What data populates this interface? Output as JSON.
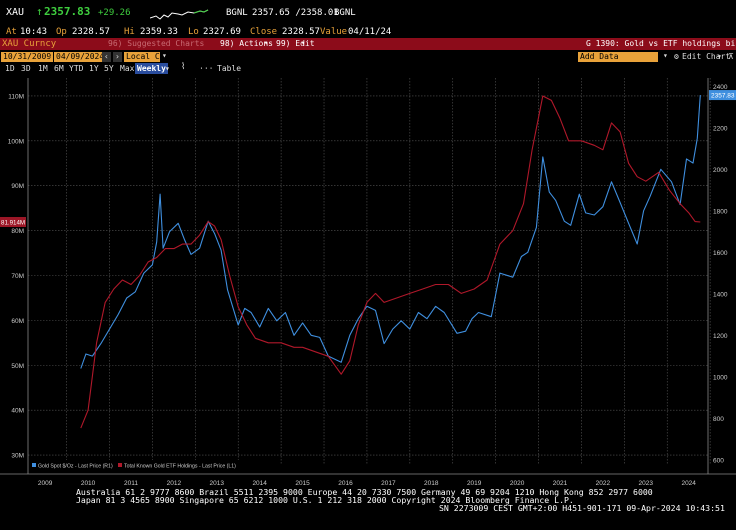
{
  "quote": {
    "ticker": "XAU",
    "arrow": "↑",
    "last": "2357.83",
    "change": "+29.26",
    "source": "BGNL",
    "bid_ask": "2357.65 /2358.01",
    "source2": "BGNL",
    "at_label": "At",
    "time": "10:43",
    "op_label": "Op",
    "open": "2328.57",
    "hi_label": "Hi",
    "high": "2359.33",
    "lo_label": "Lo",
    "low": "2327.69",
    "close_label": "Close",
    "close": "2328.57",
    "value_label": "Value",
    "value_date": "04/11/24"
  },
  "titlebar": {
    "security": "XAU Curncy",
    "suggested": "96) Suggested Charts",
    "actions": "98) Actions",
    "edit": "99) Edit",
    "chart_code": "G 1390: Gold vs ETF holdings bi"
  },
  "controls": {
    "start_date": "10/31/2009",
    "end_date": "04/09/2024",
    "currency": "Local CCY",
    "add_data_placeholder": "Add Data",
    "edit_chart": "Edit Chart"
  },
  "ranges": [
    "1D",
    "3D",
    "1M",
    "6M",
    "YTD",
    "1Y",
    "5Y",
    "Max"
  ],
  "frequency": "Weekly",
  "table_label": "Table",
  "chart_data": {
    "type": "line",
    "x_tick_labels": [
      "2009",
      "2010",
      "2011",
      "2012",
      "2013",
      "2014",
      "2015",
      "2016",
      "2017",
      "2018",
      "2019",
      "2020",
      "2021",
      "2022",
      "2023",
      "2024"
    ],
    "left_axis_ticks": [
      "30M",
      "40M",
      "50M",
      "60M",
      "70M",
      "80M",
      "90M",
      "100M",
      "110M"
    ],
    "left_axis_range_millions": [
      30,
      110
    ],
    "right_axis_ticks": [
      "600",
      "800",
      "1000",
      "1200",
      "1400",
      "1600",
      "1800",
      "2000",
      "2200",
      "2400"
    ],
    "right_axis_range": [
      600,
      2400
    ],
    "last_value_right": "2357.83",
    "last_value_left": "81.914M",
    "grid": true,
    "legend": [
      {
        "label": "Gold Spot $/Oz - Last Price (R1)",
        "color": "#3f8fdf"
      },
      {
        "label": "Total Known Gold ETF Holdings - Last Price (L1)",
        "color": "#b0182a"
      }
    ],
    "series": [
      {
        "name": "Gold Spot $/Oz - Last Price (R1)",
        "axis": "right",
        "color": "#3f8fdf",
        "points": [
          [
            2009.83,
            1040
          ],
          [
            2009.95,
            1110
          ],
          [
            2010.1,
            1100
          ],
          [
            2010.3,
            1160
          ],
          [
            2010.5,
            1230
          ],
          [
            2010.7,
            1300
          ],
          [
            2010.9,
            1380
          ],
          [
            2011.1,
            1410
          ],
          [
            2011.3,
            1500
          ],
          [
            2011.5,
            1540
          ],
          [
            2011.6,
            1650
          ],
          [
            2011.68,
            1880
          ],
          [
            2011.75,
            1620
          ],
          [
            2011.9,
            1700
          ],
          [
            2012.1,
            1740
          ],
          [
            2012.25,
            1660
          ],
          [
            2012.4,
            1590
          ],
          [
            2012.6,
            1620
          ],
          [
            2012.8,
            1750
          ],
          [
            2012.95,
            1690
          ],
          [
            2013.1,
            1610
          ],
          [
            2013.25,
            1420
          ],
          [
            2013.5,
            1250
          ],
          [
            2013.65,
            1330
          ],
          [
            2013.8,
            1310
          ],
          [
            2014.0,
            1240
          ],
          [
            2014.2,
            1330
          ],
          [
            2014.4,
            1270
          ],
          [
            2014.6,
            1310
          ],
          [
            2014.8,
            1200
          ],
          [
            2015.0,
            1260
          ],
          [
            2015.2,
            1200
          ],
          [
            2015.4,
            1190
          ],
          [
            2015.6,
            1100
          ],
          [
            2015.9,
            1070
          ],
          [
            2016.1,
            1200
          ],
          [
            2016.3,
            1280
          ],
          [
            2016.5,
            1340
          ],
          [
            2016.7,
            1320
          ],
          [
            2016.9,
            1160
          ],
          [
            2017.1,
            1230
          ],
          [
            2017.3,
            1270
          ],
          [
            2017.5,
            1230
          ],
          [
            2017.7,
            1310
          ],
          [
            2017.9,
            1280
          ],
          [
            2018.1,
            1340
          ],
          [
            2018.3,
            1310
          ],
          [
            2018.6,
            1210
          ],
          [
            2018.8,
            1220
          ],
          [
            2018.95,
            1280
          ],
          [
            2019.1,
            1310
          ],
          [
            2019.4,
            1290
          ],
          [
            2019.6,
            1500
          ],
          [
            2019.9,
            1480
          ],
          [
            2020.1,
            1580
          ],
          [
            2020.25,
            1600
          ],
          [
            2020.45,
            1720
          ],
          [
            2020.6,
            2060
          ],
          [
            2020.75,
            1890
          ],
          [
            2020.9,
            1850
          ],
          [
            2021.1,
            1750
          ],
          [
            2021.25,
            1730
          ],
          [
            2021.45,
            1880
          ],
          [
            2021.6,
            1790
          ],
          [
            2021.8,
            1780
          ],
          [
            2022.0,
            1820
          ],
          [
            2022.2,
            1940
          ],
          [
            2022.4,
            1840
          ],
          [
            2022.6,
            1740
          ],
          [
            2022.8,
            1640
          ],
          [
            2022.95,
            1800
          ],
          [
            2023.1,
            1870
          ],
          [
            2023.35,
            2000
          ],
          [
            2023.6,
            1940
          ],
          [
            2023.8,
            1830
          ],
          [
            2023.95,
            2050
          ],
          [
            2024.1,
            2030
          ],
          [
            2024.2,
            2150
          ],
          [
            2024.27,
            2357.83
          ]
        ]
      },
      {
        "name": "Total Known Gold ETF Holdings - Last Price (L1)",
        "axis": "left",
        "color": "#b0182a",
        "points": [
          [
            2009.83,
            36
          ],
          [
            2010.0,
            40
          ],
          [
            2010.2,
            55
          ],
          [
            2010.4,
            64
          ],
          [
            2010.6,
            67
          ],
          [
            2010.8,
            69
          ],
          [
            2011.0,
            68
          ],
          [
            2011.2,
            70
          ],
          [
            2011.4,
            73
          ],
          [
            2011.6,
            74
          ],
          [
            2011.8,
            76
          ],
          [
            2012.0,
            76
          ],
          [
            2012.2,
            77
          ],
          [
            2012.4,
            77
          ],
          [
            2012.6,
            79
          ],
          [
            2012.8,
            82
          ],
          [
            2012.95,
            81
          ],
          [
            2013.1,
            78
          ],
          [
            2013.3,
            70
          ],
          [
            2013.5,
            63
          ],
          [
            2013.7,
            59
          ],
          [
            2013.9,
            56
          ],
          [
            2014.2,
            55
          ],
          [
            2014.5,
            55
          ],
          [
            2014.8,
            54
          ],
          [
            2015.0,
            54
          ],
          [
            2015.3,
            53
          ],
          [
            2015.6,
            52
          ],
          [
            2015.9,
            48
          ],
          [
            2016.1,
            51
          ],
          [
            2016.3,
            59
          ],
          [
            2016.5,
            64
          ],
          [
            2016.7,
            66
          ],
          [
            2016.9,
            64
          ],
          [
            2017.2,
            65
          ],
          [
            2017.5,
            66
          ],
          [
            2017.8,
            67
          ],
          [
            2018.1,
            68
          ],
          [
            2018.4,
            68
          ],
          [
            2018.7,
            66
          ],
          [
            2019.0,
            67
          ],
          [
            2019.3,
            69
          ],
          [
            2019.6,
            77
          ],
          [
            2019.9,
            80
          ],
          [
            2020.15,
            86
          ],
          [
            2020.35,
            98
          ],
          [
            2020.6,
            110
          ],
          [
            2020.8,
            109
          ],
          [
            2021.0,
            105
          ],
          [
            2021.2,
            100
          ],
          [
            2021.5,
            100
          ],
          [
            2021.8,
            99
          ],
          [
            2022.0,
            98
          ],
          [
            2022.2,
            104
          ],
          [
            2022.4,
            102
          ],
          [
            2022.6,
            95
          ],
          [
            2022.8,
            92
          ],
          [
            2023.0,
            91
          ],
          [
            2023.3,
            93
          ],
          [
            2023.55,
            89
          ],
          [
            2023.8,
            86
          ],
          [
            2024.0,
            84
          ],
          [
            2024.15,
            82
          ],
          [
            2024.27,
            81.914
          ]
        ]
      }
    ]
  },
  "footer": {
    "line1": "Australia 61 2 9777 8600 Brazil 5511 2395 9000 Europe 44 20 7330 7500 Germany 49 69 9204 1210 Hong Kong 852 2977 6000",
    "line2": "Japan 81 3 4565 8900        Singapore 65 6212 1000        U.S. 1 212 318 2000          Copyright 2024 Bloomberg Finance L.P.",
    "line3": "SN 2273009 CEST GMT+2:00 H451-901-171 09-Apr-2024 10:43:51"
  },
  "colors": {
    "gold_line": "#3f8fdf",
    "etf_line": "#b0182a",
    "title_bar": "#8c0c1a",
    "field_orange": "#e8a23a",
    "quote_green": "#3fcf3f"
  }
}
